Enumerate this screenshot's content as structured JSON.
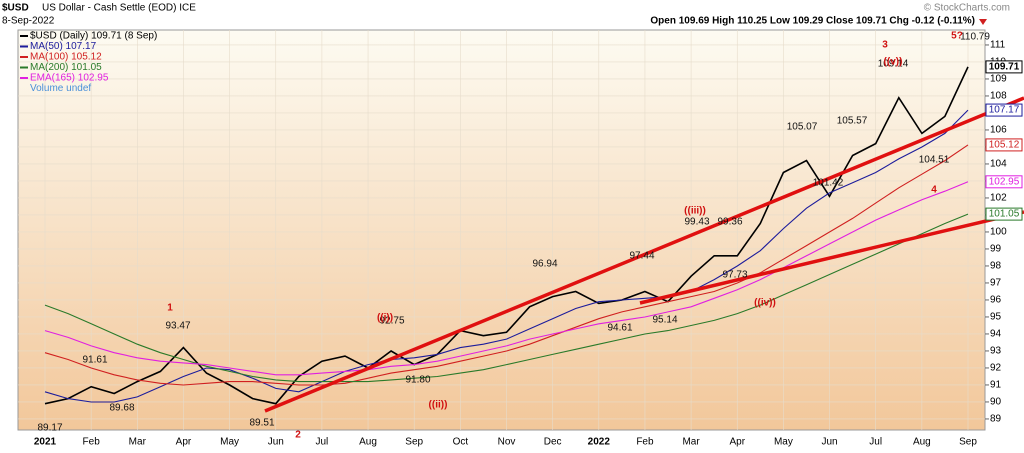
{
  "chart_data": {
    "type": "line",
    "symbol": "$USD",
    "title": "US Dollar - Cash Settle (EOD) ICE",
    "date": "8-Sep-2022",
    "quote": "Open 109.69 High 110.25 Low 109.29 Close 109.71 Chg -0.12 (-0.11%)",
    "watermark": "© StockCharts.com",
    "volume_label": "Volume undef",
    "categories": [
      "2021",
      null,
      "Feb",
      null,
      "Mar",
      null,
      "Apr",
      null,
      "May",
      null,
      "Jun",
      null,
      "Jul",
      null,
      "Aug",
      null,
      "Sep",
      null,
      "Oct",
      null,
      "Nov",
      null,
      "Dec",
      null,
      "2022",
      null,
      "Feb",
      null,
      "Mar",
      null,
      "Apr",
      null,
      "May",
      null,
      "Jun",
      null,
      "Jul",
      null,
      "Aug",
      null,
      "Sep"
    ],
    "series": [
      {
        "name": "$USD (Daily) 109.71 (8 Sep)",
        "color": "#000000",
        "values": [
          89.9,
          90.2,
          90.9,
          90.5,
          91.2,
          91.8,
          93.2,
          91.7,
          91.0,
          90.2,
          89.9,
          91.5,
          92.4,
          92.7,
          92.0,
          93.0,
          92.2,
          92.8,
          94.2,
          93.9,
          94.1,
          95.6,
          96.2,
          96.5,
          95.8,
          96.0,
          96.5,
          95.9,
          97.4,
          98.6,
          98.6,
          100.5,
          103.5,
          104.2,
          102.1,
          104.5,
          105.2,
          107.9,
          105.8,
          106.8,
          109.71
        ]
      },
      {
        "name": "MA(50) 107.17",
        "color": "#1c1c9c",
        "values": [
          90.6,
          90.2,
          90.0,
          90.0,
          90.3,
          90.9,
          91.5,
          92.0,
          91.9,
          91.4,
          90.8,
          90.6,
          91.2,
          91.8,
          92.2,
          92.5,
          92.6,
          92.8,
          93.2,
          93.4,
          93.7,
          94.3,
          94.9,
          95.5,
          95.9,
          96.0,
          96.1,
          96.2,
          96.5,
          97.2,
          98.0,
          98.9,
          100.2,
          101.4,
          102.3,
          102.9,
          103.5,
          104.3,
          105.0,
          105.8,
          107.17
        ]
      },
      {
        "name": "MA(100) 105.12",
        "color": "#d02020",
        "values": [
          92.9,
          92.5,
          92.0,
          91.6,
          91.3,
          91.1,
          91.0,
          91.1,
          91.2,
          91.2,
          91.1,
          91.0,
          91.0,
          91.1,
          91.4,
          91.7,
          91.9,
          92.1,
          92.4,
          92.7,
          93.0,
          93.4,
          93.9,
          94.4,
          94.9,
          95.3,
          95.6,
          95.9,
          96.2,
          96.5,
          97.0,
          97.6,
          98.4,
          99.2,
          100.0,
          100.8,
          101.7,
          102.6,
          103.4,
          104.2,
          105.12
        ]
      },
      {
        "name": "MA(200) 101.05",
        "color": "#2a7a2a",
        "values": [
          95.7,
          95.2,
          94.6,
          94.0,
          93.4,
          92.9,
          92.5,
          92.1,
          91.8,
          91.5,
          91.3,
          91.2,
          91.2,
          91.2,
          91.2,
          91.3,
          91.4,
          91.5,
          91.7,
          91.9,
          92.2,
          92.5,
          92.8,
          93.1,
          93.4,
          93.7,
          94.0,
          94.2,
          94.5,
          94.8,
          95.2,
          95.7,
          96.3,
          96.9,
          97.5,
          98.1,
          98.7,
          99.3,
          99.9,
          100.5,
          101.05
        ]
      },
      {
        "name": "EMA(165) 102.95",
        "color": "#e020e0",
        "values": [
          94.2,
          93.8,
          93.3,
          92.9,
          92.6,
          92.4,
          92.3,
          92.2,
          92.0,
          91.8,
          91.6,
          91.6,
          91.7,
          91.8,
          91.9,
          92.1,
          92.2,
          92.4,
          92.7,
          93.0,
          93.3,
          93.7,
          94.0,
          94.3,
          94.6,
          94.8,
          95.0,
          95.3,
          95.6,
          96.1,
          96.6,
          97.2,
          97.9,
          98.6,
          99.3,
          100.0,
          100.7,
          101.3,
          101.9,
          102.4,
          102.95
        ]
      }
    ],
    "ylim": [
      88.35,
      111.88
    ],
    "yticks": [
      89,
      90,
      91,
      92,
      93,
      94,
      95,
      96,
      97,
      98,
      99,
      100,
      101,
      102,
      103,
      104,
      105,
      106,
      107,
      108,
      109,
      110,
      111
    ],
    "price_labels": [
      "89.17",
      "91.61",
      "89.68",
      "93.47",
      "89.51",
      "92.75",
      "91.80",
      "96.94",
      "94.61",
      "97.44",
      "95.14",
      "99.43",
      "99.36",
      "97.73",
      "105.07",
      "101.42",
      "105.57",
      "104.51",
      "109.14",
      "110.79"
    ],
    "wave_labels": [
      "1",
      "2",
      "((i))",
      "((ii))",
      "((iii))",
      "((iv))",
      "3",
      "((v))",
      "4",
      "5?"
    ]
  }
}
